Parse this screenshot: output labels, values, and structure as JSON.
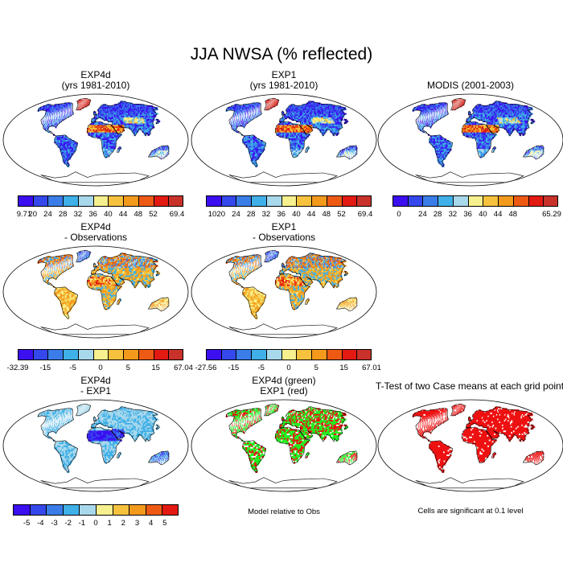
{
  "title": "JJA NWSA (% reflected)",
  "colors": {
    "levels": [
      "#3b0ff0",
      "#3448ec",
      "#3a7de8",
      "#3fb0e8",
      "#a8d8ec",
      "#f7f08e",
      "#f6c23d",
      "#f39a1c",
      "#ee5a14",
      "#e21a12",
      "#c8322a"
    ],
    "diff": [
      "#3b0ff0",
      "#3448ec",
      "#3a7de8",
      "#3fb0e8",
      "#a8d8ec",
      "#f7f08e",
      "#f6c23d",
      "#f39a1c",
      "#ee5a14",
      "#e21a12"
    ],
    "green": "#22ee22",
    "red": "#ee1111"
  },
  "chart_data": [
    {
      "type": "heatmap",
      "id": "exp4d",
      "title": "EXP4d",
      "subtitle": "(yrs 1981-2010)",
      "colorbar": [
        "9.71",
        "20",
        "24",
        "28",
        "32",
        "36",
        "40",
        "44",
        "48",
        "52",
        "69.4"
      ],
      "colorbar_range": [
        9.71,
        69.4
      ],
      "pattern": "albedo"
    },
    {
      "type": "heatmap",
      "id": "exp1",
      "title": "EXP1",
      "subtitle": "(yrs 1981-2010)",
      "colorbar": [
        "10",
        "20",
        "24",
        "28",
        "32",
        "36",
        "40",
        "44",
        "48",
        "52",
        "69.4"
      ],
      "colorbar_range": [
        10,
        69.4
      ],
      "pattern": "albedo"
    },
    {
      "type": "heatmap",
      "id": "modis",
      "title": "MODIS (2001-2003)",
      "subtitle": "",
      "colorbar": [
        "0",
        "",
        "24",
        "28",
        "32",
        "36",
        "40",
        "44",
        "48",
        "",
        "65.29"
      ],
      "colorbar_range": [
        0,
        65.29
      ],
      "pattern": "albedo"
    },
    {
      "type": "heatmap",
      "id": "exp4d-obs",
      "title": "EXP4d",
      "subtitle": "- Observations",
      "colorbar": [
        "-32.39",
        "",
        "-15",
        "",
        "-5",
        "",
        "0",
        "",
        "5",
        "",
        "15",
        "",
        "67.04"
      ],
      "colorbar_range": [
        -32.39,
        67.04
      ],
      "pattern": "bias"
    },
    {
      "type": "heatmap",
      "id": "exp1-obs",
      "title": "EXP1",
      "subtitle": "- Observations",
      "colorbar": [
        "-27.56",
        "",
        "-15",
        "",
        "-5",
        "",
        "0",
        "",
        "5",
        "",
        "15",
        "",
        "67.01"
      ],
      "colorbar_range": [
        -27.56,
        67.01
      ],
      "pattern": "bias"
    },
    {
      "type": "heatmap",
      "id": "exp4d-exp1",
      "title": "EXP4d",
      "subtitle": "- EXP1",
      "colorbar": [
        "",
        "-5",
        "-4",
        "-3",
        "-2",
        "-1",
        "0",
        "1",
        "2",
        "3",
        "4",
        "5",
        ""
      ],
      "colorbar_range": [
        -5,
        5
      ],
      "pattern": "diff"
    },
    {
      "type": "heatmap",
      "id": "green-red",
      "title": "EXP4d (green)",
      "subtitle": "EXP1 (red)",
      "note": "Model relative to Obs",
      "pattern": "greenred"
    },
    {
      "type": "heatmap",
      "id": "ttest",
      "title": "T-Test of two Case means at each grid point",
      "subtitle": "",
      "note": "Cells are significant at 0.1 level",
      "pattern": "ttest"
    }
  ]
}
